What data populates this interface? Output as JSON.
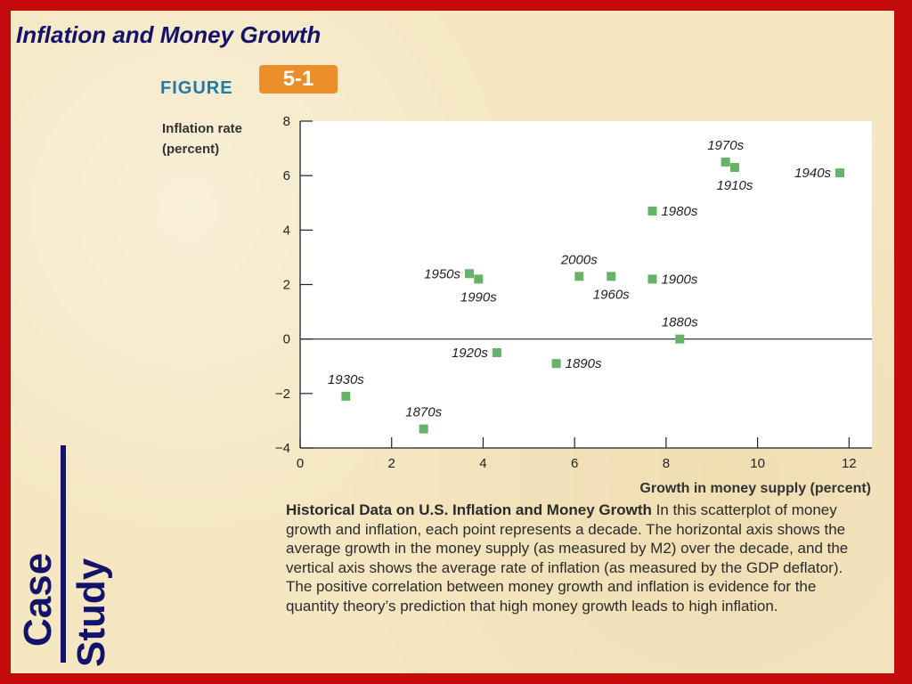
{
  "slide": {
    "title": "Inflation and Money Growth",
    "figure_word": "FIGURE",
    "figure_number": "5-1",
    "case_word": "Case",
    "study_word": "Study"
  },
  "caption": {
    "heading": "Historical Data on U.S. Inflation and Money Growth",
    "body": " In this scatterplot of money growth and inflation, each point represents a decade. The horizontal axis shows the average growth in the money supply (as measured by M2) over the decade, and the vertical axis shows the average rate of inflation (as measured by the GDP deflator). The positive correlation between money growth and inflation is evidence for the quantity theory’s prediction that high money growth leads to high inflation."
  },
  "colors": {
    "border": "#c40a0a",
    "background": "#f5e7c2",
    "title": "#13136b",
    "marker": "#66b266",
    "figure_badge": "#ec8f2a",
    "figure_word": "#1f7aa8"
  },
  "chart_data": {
    "type": "scatter",
    "title": "",
    "ylabel_lines": [
      "Inflation rate",
      "(percent)"
    ],
    "xlabel": "Growth in money supply (percent)",
    "xlim": [
      0,
      12.5
    ],
    "ylim": [
      -4,
      8
    ],
    "xticks": [
      0,
      2,
      4,
      6,
      8,
      10,
      12
    ],
    "yticks": [
      -4,
      -2,
      0,
      2,
      4,
      6,
      8
    ],
    "ytick_labels": [
      "−4",
      "−2",
      "0",
      "2",
      "4",
      "6",
      "8"
    ],
    "zero_line": true,
    "points": [
      {
        "label": "1870s",
        "x": 2.7,
        "y": -3.3,
        "label_pos": "above"
      },
      {
        "label": "1880s",
        "x": 8.3,
        "y": 0.0,
        "label_pos": "above"
      },
      {
        "label": "1890s",
        "x": 5.6,
        "y": -0.9,
        "label_pos": "right"
      },
      {
        "label": "1900s",
        "x": 7.7,
        "y": 2.2,
        "label_pos": "right"
      },
      {
        "label": "1910s",
        "x": 9.5,
        "y": 6.3,
        "label_pos": "below"
      },
      {
        "label": "1920s",
        "x": 4.3,
        "y": -0.5,
        "label_pos": "left"
      },
      {
        "label": "1930s",
        "x": 1.0,
        "y": -2.1,
        "label_pos": "above"
      },
      {
        "label": "1940s",
        "x": 11.8,
        "y": 6.1,
        "label_pos": "left"
      },
      {
        "label": "1950s",
        "x": 3.7,
        "y": 2.4,
        "label_pos": "left"
      },
      {
        "label": "1960s",
        "x": 6.8,
        "y": 2.3,
        "label_pos": "below"
      },
      {
        "label": "1970s",
        "x": 9.3,
        "y": 6.5,
        "label_pos": "above"
      },
      {
        "label": "1980s",
        "x": 7.7,
        "y": 4.7,
        "label_pos": "right"
      },
      {
        "label": "1990s",
        "x": 3.9,
        "y": 2.2,
        "label_pos": "below"
      },
      {
        "label": "2000s",
        "x": 6.1,
        "y": 2.3,
        "label_pos": "above"
      }
    ]
  }
}
